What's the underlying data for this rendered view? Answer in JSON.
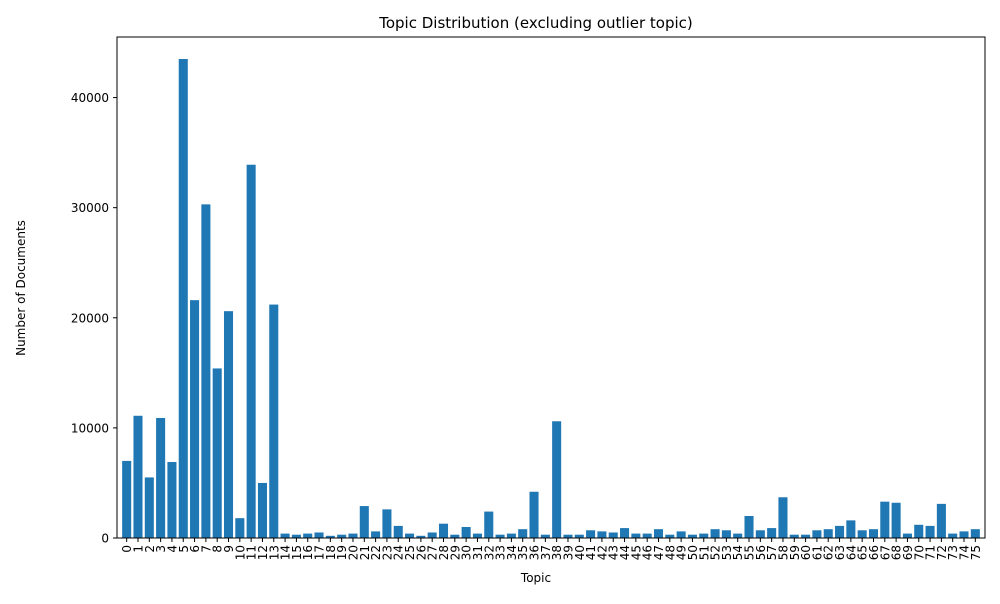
{
  "chart_data": {
    "type": "bar",
    "title": "Topic Distribution (excluding outlier topic)",
    "xlabel": "Topic",
    "ylabel": "Number of Documents",
    "ylim": [
      0,
      45500
    ],
    "yticks": [
      0,
      10000,
      20000,
      30000,
      40000
    ],
    "grid": false,
    "bar_color": "#1f77b4",
    "categories": [
      "0",
      "1",
      "2",
      "3",
      "4",
      "5",
      "6",
      "7",
      "8",
      "9",
      "10",
      "11",
      "12",
      "13",
      "14",
      "15",
      "16",
      "17",
      "18",
      "19",
      "20",
      "21",
      "22",
      "23",
      "24",
      "25",
      "26",
      "27",
      "28",
      "29",
      "30",
      "31",
      "32",
      "33",
      "34",
      "35",
      "36",
      "37",
      "38",
      "39",
      "40",
      "41",
      "42",
      "43",
      "44",
      "45",
      "46",
      "47",
      "48",
      "49",
      "50",
      "51",
      "52",
      "53",
      "54",
      "55",
      "56",
      "57",
      "58",
      "59",
      "60",
      "61",
      "62",
      "63",
      "64",
      "65",
      "66",
      "67",
      "68",
      "69",
      "70",
      "71",
      "72",
      "73",
      "74",
      "75"
    ],
    "values": [
      7000,
      11100,
      5500,
      10900,
      6900,
      43500,
      21600,
      30300,
      15400,
      20600,
      1800,
      33900,
      5000,
      21200,
      400,
      300,
      400,
      500,
      200,
      300,
      400,
      2900,
      600,
      2600,
      1100,
      400,
      200,
      500,
      1300,
      300,
      1000,
      400,
      2400,
      300,
      400,
      800,
      4200,
      300,
      10600,
      300,
      300,
      700,
      600,
      500,
      900,
      400,
      400,
      800,
      300,
      600,
      300,
      400,
      800,
      700,
      400,
      2000,
      700,
      900,
      3700,
      300,
      300,
      700,
      800,
      1100,
      1600,
      700,
      800,
      3300,
      3200,
      400,
      1200,
      1100,
      3100,
      400,
      600,
      800
    ]
  }
}
